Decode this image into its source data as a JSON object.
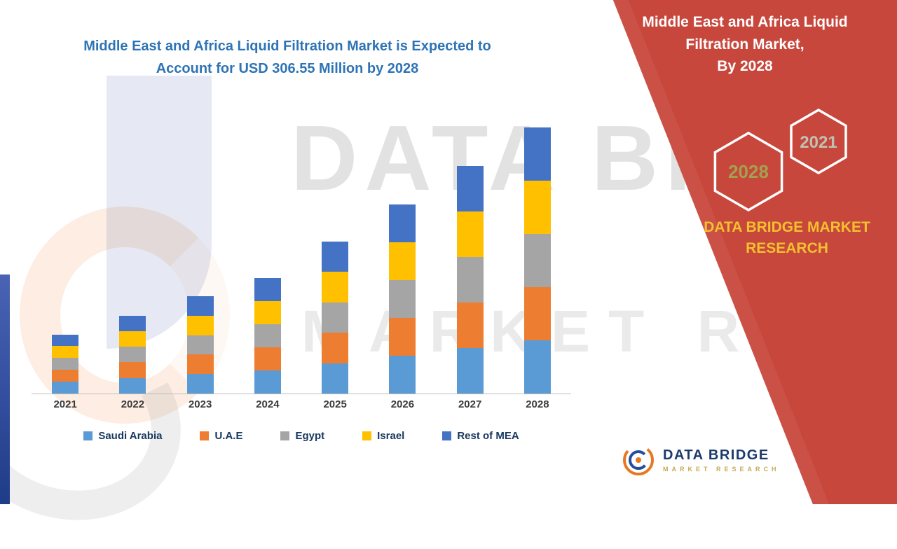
{
  "main_title": {
    "line1": "Middle East and Africa Liquid Filtration Market is Expected to",
    "line2": "Account for USD 306.55 Million by 2028"
  },
  "chart_data": {
    "type": "bar",
    "stacked": true,
    "title": "Middle East and Africa Liquid Filtration Market is Expected to Account for USD 306.55 Million by 2028",
    "unit": "USD Million",
    "categories": [
      "2021",
      "2022",
      "2023",
      "2024",
      "2025",
      "2026",
      "2027",
      "2028"
    ],
    "series": [
      {
        "name": "Saudi Arabia",
        "color": "#5b9bd5",
        "values": [
          13.6,
          18.0,
          22.4,
          26.6,
          35.0,
          43.6,
          52.4,
          61.3
        ]
      },
      {
        "name": "U.A.E",
        "color": "#ed7d31",
        "values": [
          13.6,
          18.0,
          22.4,
          26.6,
          35.0,
          43.6,
          52.4,
          61.3
        ]
      },
      {
        "name": "Egypt",
        "color": "#a5a5a5",
        "values": [
          13.6,
          18.0,
          22.4,
          26.6,
          35.0,
          43.6,
          52.4,
          61.3
        ]
      },
      {
        "name": "Israel",
        "color": "#ffc000",
        "values": [
          13.6,
          18.0,
          22.4,
          26.6,
          35.0,
          43.6,
          52.4,
          61.3
        ]
      },
      {
        "name": "Rest of MEA",
        "color": "#4472c4",
        "values": [
          13.6,
          18.0,
          22.4,
          26.6,
          35.0,
          43.6,
          52.4,
          61.35
        ]
      }
    ],
    "totals": [
      68,
      90,
      112,
      133,
      175,
      218,
      262,
      306.55
    ],
    "ylim": [
      0,
      320
    ],
    "grid": false,
    "legend_position": "bottom",
    "axis_labels_bold": true
  },
  "right_panel": {
    "title1": "Middle East and Africa Liquid",
    "title2": "Filtration Market,",
    "title3": "By 2028",
    "hex_2028": "2028",
    "hex_2021": "2021",
    "brand1": "DATA BRIDGE MARKET",
    "brand2": "RESEARCH",
    "panel_color": "#c8473c"
  },
  "watermark": {
    "line1": "DATA BRIDGE",
    "line2": "MARKET RESEARCH"
  },
  "footer": {
    "brand": "DATA BRIDGE",
    "tagline": "MARKET RESEARCH"
  }
}
